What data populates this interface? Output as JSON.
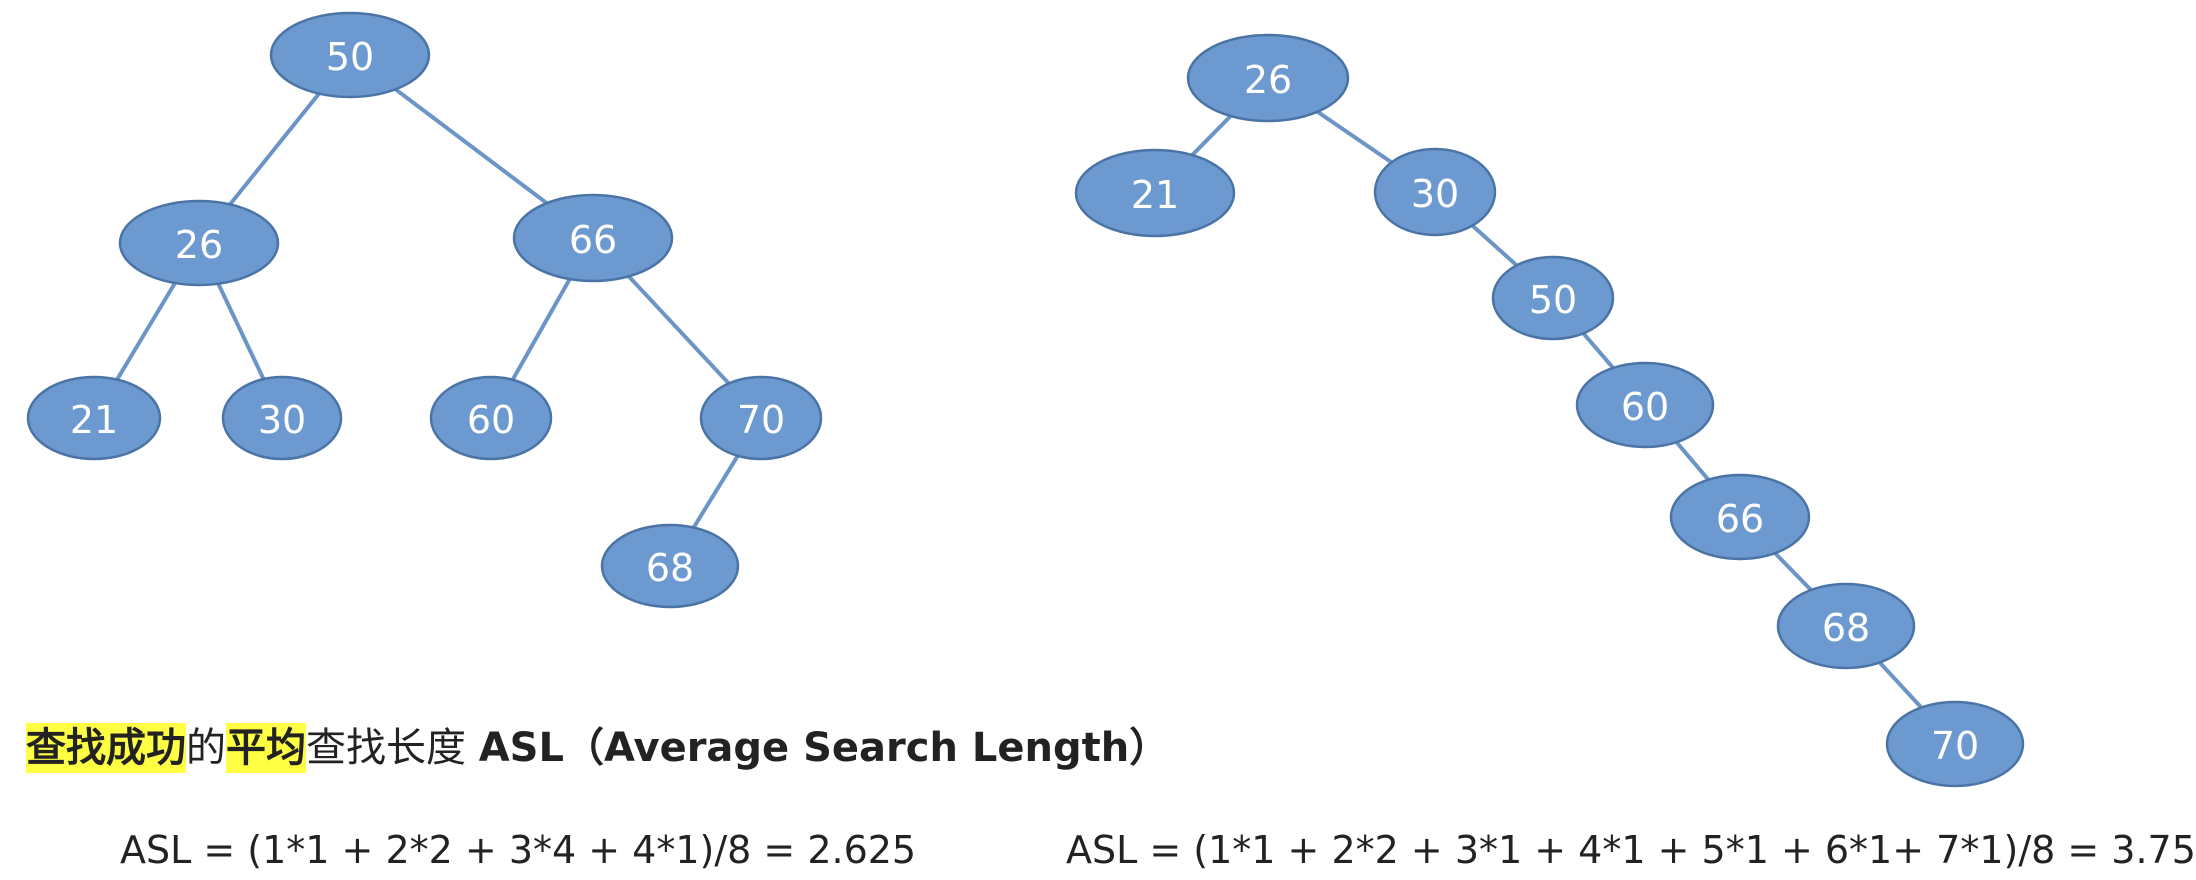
{
  "trees": {
    "balanced": {
      "nodes": [
        "50",
        "26",
        "66",
        "21",
        "30",
        "60",
        "70",
        "68"
      ],
      "edges": [
        [
          "50",
          "26"
        ],
        [
          "50",
          "66"
        ],
        [
          "26",
          "21"
        ],
        [
          "26",
          "30"
        ],
        [
          "66",
          "60"
        ],
        [
          "66",
          "70"
        ],
        [
          "70",
          "68"
        ]
      ]
    },
    "skewed": {
      "nodes": [
        "26",
        "21",
        "30",
        "50",
        "60",
        "66",
        "68",
        "70"
      ],
      "edges": [
        [
          "26",
          "21"
        ],
        [
          "26",
          "30"
        ],
        [
          "30",
          "50"
        ],
        [
          "50",
          "60"
        ],
        [
          "60",
          "66"
        ],
        [
          "66",
          "68"
        ],
        [
          "68",
          "70"
        ]
      ]
    }
  },
  "title": {
    "highlight_1": "查找成功",
    "connector": "的",
    "highlight_2": "平均",
    "rest": "查找长度 ",
    "term": "ASL（Average Search Length）"
  },
  "formulas": {
    "left": "ASL = (1*1 + 2*2 + 3*4 + 4*1)/8 = 2.625",
    "right": "ASL = (1*1 + 2*2 + 3*1 + 4*1 + 5*1 + 6*1+  7*1)/8 = 3.75"
  },
  "colors": {
    "node_fill": "#6c99cf",
    "edge": "#6a95c6",
    "highlight": "#ffff44"
  }
}
